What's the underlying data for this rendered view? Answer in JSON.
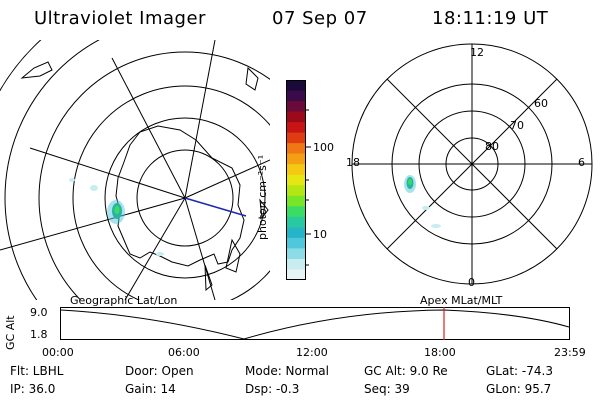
{
  "header": {
    "instrument": "Ultraviolet Imager",
    "date": "07 Sep 07",
    "time": "18:11:19 UT"
  },
  "colorbar": {
    "unit_label": "photon cm⁻²s⁻¹",
    "ticks": [
      "100",
      "10"
    ],
    "colors": [
      "#1a0a3a",
      "#3a0a4a",
      "#6a0a3a",
      "#9b0a1a",
      "#c81414",
      "#e03c14",
      "#f07814",
      "#f5a014",
      "#f5c814",
      "#e6e614",
      "#b4e614",
      "#78e628",
      "#3cdc64",
      "#28c8a0",
      "#28b4c8",
      "#50c8dc",
      "#8cdce6",
      "#c8ecf0",
      "#e6f4f6"
    ]
  },
  "left_panel": {
    "label": "Geographic Lat/Lon"
  },
  "right_panel": {
    "label": "Apex MLat/MLT",
    "mlt_labels": {
      "top": "12",
      "left": "18",
      "right": "6",
      "bottom": "0"
    },
    "lat_labels": [
      "60",
      "70",
      "80"
    ]
  },
  "timeline": {
    "ylabel": "GC Alt",
    "ymax": "9.0",
    "ymin": "1.8",
    "xticks": [
      "00:00",
      "06:00",
      "12:00",
      "18:00",
      "23:59"
    ],
    "marker_color": "#e02020"
  },
  "info": {
    "flt": "Flt: LBHL",
    "ip": "IP: 36.0",
    "door": "Door: Open",
    "gain": "Gain: 14",
    "mode": "Mode: Normal",
    "dsp": "Dsp:    -0.3",
    "gc_alt": "GC Alt: 9.0 Re",
    "seq": "Seq: 39",
    "glat": "GLat:  -74.3",
    "glon": "GLon:   95.7"
  }
}
